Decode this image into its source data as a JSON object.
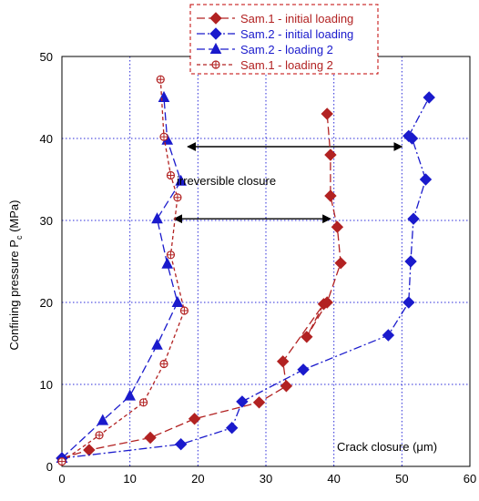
{
  "chart_data": {
    "type": "line",
    "xlabel": "Crack closure (μm)",
    "ylabel": "Confining pressure P",
    "ylabel_sub": "c",
    "ylabel_unit": " (MPa)",
    "xlim": [
      0,
      60
    ],
    "ylim": [
      0,
      50
    ],
    "xticks": [
      0,
      10,
      20,
      30,
      40,
      50,
      60
    ],
    "yticks": [
      0,
      10,
      20,
      30,
      40,
      50
    ],
    "grid": true,
    "legend_position": "top-center",
    "series": [
      {
        "name": "Sam.1 - initial loading",
        "color": "#b22222",
        "marker": "diamond-filled",
        "dash": "long-dash",
        "x": [
          0,
          4,
          13,
          19.5,
          29,
          33,
          32.5,
          38.5,
          36,
          39,
          41,
          40.5,
          39.5,
          39.5,
          39
        ],
        "y": [
          1,
          2,
          3.5,
          5.8,
          7.8,
          9.8,
          12.8,
          19.8,
          15.8,
          20,
          24.8,
          29.2,
          33,
          38,
          43
        ]
      },
      {
        "name": "Sam.2 - initial loading",
        "color": "#1a1acc",
        "marker": "diamond-filled",
        "dash": "dash-dot",
        "x": [
          0,
          17.5,
          25,
          26.5,
          35.5,
          48,
          51,
          51.3,
          51.7,
          53.5,
          51.5,
          51,
          54
        ],
        "y": [
          1,
          2.7,
          4.7,
          7.9,
          11.8,
          16,
          20,
          25,
          30.2,
          35,
          40,
          40.3,
          45
        ]
      },
      {
        "name": "Sam.2 - loading 2",
        "color": "#1a1acc",
        "marker": "triangle-filled",
        "dash": "long-dash",
        "x": [
          0,
          6,
          10,
          14,
          17,
          15.5,
          14,
          17.5,
          15.5,
          15
        ],
        "y": [
          1,
          5.6,
          8.6,
          14.8,
          20,
          24.7,
          30.2,
          34.8,
          39.8,
          45
        ]
      },
      {
        "name": "Sam.1 - loading 2",
        "color": "#b22222",
        "marker": "circle-cross-open",
        "dash": "short-dash",
        "x": [
          0,
          5.5,
          12,
          15,
          18,
          16,
          17,
          16,
          15,
          14.5
        ],
        "y": [
          0.6,
          3.8,
          7.8,
          12.5,
          19,
          25.8,
          32.8,
          35.5,
          40.2,
          47.2
        ]
      }
    ],
    "annotations": [
      {
        "text": "irreversible closure"
      }
    ],
    "arrows": [
      {
        "y": 39,
        "x_from": 18.5,
        "x_to": 50
      },
      {
        "y": 30.2,
        "x_from": 16.5,
        "x_to": 39.5
      }
    ]
  }
}
